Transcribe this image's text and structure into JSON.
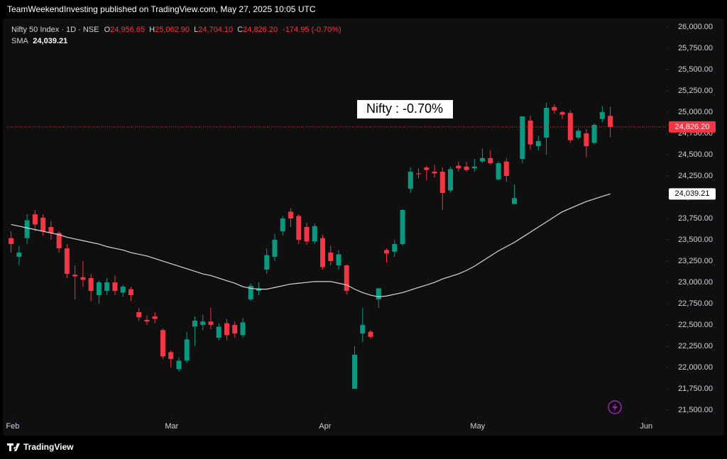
{
  "header": "TeamWeekendInvesting published on TradingView.com, May 27, 2025 10:05 UTC",
  "footer": "TradingView",
  "chart_data": {
    "type": "candlestick",
    "legend": {
      "symbol": "Nifty 50 Index · 1D · NSE",
      "o_key": "O",
      "open": "24,956.65",
      "h_key": "H",
      "high": "25,062.90",
      "l_key": "L",
      "low": "24,704.10",
      "c_key": "C",
      "close": "24,826.20",
      "change": "-174.95 (-0.70%)",
      "sma_key": "SMA",
      "sma": "24,039.21"
    },
    "annotation": "Nifty : -0.70%",
    "up_color": "#089981",
    "down_color": "#f23645",
    "sma_color": "#d9d9d9",
    "x": [
      0,
      1,
      2,
      3,
      4,
      5,
      6,
      7,
      8,
      9,
      10,
      11,
      12,
      13,
      14,
      15,
      16,
      17,
      18,
      19,
      20,
      21,
      22,
      23,
      24,
      25,
      26,
      27,
      28,
      29,
      30,
      31,
      32,
      33,
      34,
      35,
      36,
      37,
      38,
      39,
      40,
      41,
      42,
      43,
      44,
      45,
      46,
      47,
      48,
      49,
      50,
      51,
      52,
      53,
      54,
      55,
      56,
      57,
      58,
      59,
      60,
      61,
      62,
      63,
      64,
      65,
      66,
      67,
      68,
      69,
      70,
      71,
      72,
      73,
      74,
      75
    ],
    "open": [
      23520,
      23300,
      23520,
      23800,
      23760,
      23650,
      23580,
      23400,
      23090,
      23060,
      23050,
      22850,
      22900,
      23000,
      22880,
      22920,
      22650,
      22560,
      22600,
      22440,
      22180,
      21980,
      22080,
      22480,
      22500,
      22540,
      22350,
      22520,
      22500,
      22380,
      22800,
      22900,
      23150,
      23300,
      23600,
      23830,
      23780,
      23650,
      23480,
      23520,
      23350,
      23200,
      23200,
      21750,
      22400,
      22420,
      22800,
      23380,
      23360,
      23450,
      24100,
      24280,
      24350,
      24300,
      24300,
      24080,
      24370,
      24360,
      24340,
      24420,
      24460,
      24210,
      24420,
      23920,
      24450,
      24900,
      24600,
      24700,
      25060,
      25000,
      24990,
      24700,
      24750,
      24640,
      24920,
      24956.65
    ],
    "high": [
      23600,
      23430,
      23800,
      23850,
      23800,
      23720,
      23600,
      23450,
      23200,
      23250,
      23100,
      23020,
      23050,
      23080,
      22970,
      22950,
      22700,
      22610,
      22650,
      22460,
      22200,
      22120,
      22420,
      22600,
      22620,
      22700,
      22520,
      22570,
      22540,
      22580,
      22990,
      23000,
      23400,
      23570,
      23780,
      23870,
      23800,
      23700,
      23690,
      23560,
      23430,
      23380,
      23210,
      22250,
      22700,
      22440,
      22930,
      23400,
      23500,
      23860,
      24350,
      24340,
      24370,
      24380,
      24350,
      24360,
      24420,
      24420,
      24450,
      24570,
      24550,
      24420,
      24460,
      24150,
      24950,
      24960,
      24720,
      25110,
      25090,
      25010,
      25020,
      24810,
      24800,
      24870,
      25070,
      25062.9
    ],
    "low": [
      23350,
      23200,
      23450,
      23600,
      23550,
      23500,
      23350,
      23050,
      22800,
      22950,
      22780,
      22750,
      22850,
      22850,
      22830,
      22780,
      22550,
      22500,
      22520,
      22100,
      22000,
      21950,
      22050,
      22250,
      22440,
      22450,
      22320,
      22320,
      22350,
      22350,
      22780,
      22850,
      23100,
      23250,
      23550,
      23650,
      23450,
      23440,
      23450,
      23150,
      23200,
      23150,
      22860,
      21750,
      22300,
      22340,
      22700,
      23230,
      23300,
      23430,
      24050,
      24220,
      24200,
      24230,
      23850,
      24060,
      24300,
      24300,
      24300,
      24400,
      24380,
      24200,
      24180,
      23920,
      24400,
      24560,
      24550,
      24500,
      24980,
      24920,
      24640,
      24680,
      24470,
      24620,
      24880,
      24704.1
    ],
    "close": [
      23450,
      23350,
      23730,
      23680,
      23600,
      23580,
      23400,
      23100,
      23070,
      23030,
      22900,
      23000,
      23000,
      22900,
      22950,
      22850,
      22590,
      22540,
      22570,
      22130,
      22100,
      22080,
      22330,
      22550,
      22540,
      22500,
      22480,
      22380,
      22400,
      22530,
      22960,
      22930,
      23320,
      23500,
      23750,
      23750,
      23500,
      23480,
      23660,
      23180,
      23250,
      23330,
      22900,
      22150,
      22500,
      22360,
      22930,
      23340,
      23450,
      23850,
      24300,
      24270,
      24320,
      24280,
      24050,
      24330,
      24340,
      24320,
      24360,
      24460,
      24400,
      24400,
      24250,
      23990,
      24950,
      24620,
      24660,
      25050,
      25020,
      24970,
      24670,
      24780,
      24600,
      24850,
      25000,
      24826.2
    ],
    "sma": [
      23680,
      23660,
      23640,
      23620,
      23600,
      23580,
      23560,
      23530,
      23510,
      23490,
      23470,
      23450,
      23420,
      23400,
      23380,
      23350,
      23330,
      23310,
      23280,
      23250,
      23220,
      23190,
      23160,
      23130,
      23100,
      23080,
      23050,
      23020,
      22990,
      22950,
      22930,
      22920,
      22920,
      22940,
      22960,
      22980,
      22990,
      23000,
      23010,
      23010,
      23010,
      22990,
      22970,
      22920,
      22880,
      22850,
      22830,
      22840,
      22860,
      22880,
      22910,
      22940,
      22970,
      23000,
      23040,
      23070,
      23100,
      23140,
      23190,
      23250,
      23310,
      23370,
      23420,
      23470,
      23530,
      23590,
      23650,
      23710,
      23770,
      23830,
      23870,
      23910,
      23950,
      23980,
      24010,
      24039.21
    ],
    "last_price": {
      "value": 24826.2,
      "label": "24,826.20"
    },
    "sma_last": {
      "value": 24039.21,
      "label": "24,039.21"
    },
    "xlim": [
      -0.5,
      81.7
    ],
    "xticks": [
      {
        "value": 0.2,
        "label": "Feb"
      },
      {
        "value": 20.1,
        "label": "Mar"
      },
      {
        "value": 39.3,
        "label": "Apr"
      },
      {
        "value": 58.4,
        "label": "May"
      },
      {
        "value": 79.5,
        "label": "Jun"
      }
    ],
    "ylim": [
      21417,
      26092
    ],
    "yticks": [
      {
        "value": 21500,
        "label": "21,500.00"
      },
      {
        "value": 21750,
        "label": "21,750.00"
      },
      {
        "value": 22000,
        "label": "22,000.00"
      },
      {
        "value": 22250,
        "label": "22,250.00"
      },
      {
        "value": 22500,
        "label": "22,500.00"
      },
      {
        "value": 22750,
        "label": "22,750.00"
      },
      {
        "value": 23000,
        "label": "23,000.00"
      },
      {
        "value": 23250,
        "label": "23,250.00"
      },
      {
        "value": 23500,
        "label": "23,500.00"
      },
      {
        "value": 23750,
        "label": "23,750.00"
      },
      {
        "value": 24000,
        "label": "24,000.00"
      },
      {
        "value": 24250,
        "label": "24,250.00"
      },
      {
        "value": 24500,
        "label": "24,500.00"
      },
      {
        "value": 24750,
        "label": "24,750.00"
      },
      {
        "value": 25000,
        "label": "25,000.00"
      },
      {
        "value": 25250,
        "label": "25,250.00"
      },
      {
        "value": 25500,
        "label": "25,500.00"
      },
      {
        "value": 25750,
        "label": "25,750.00"
      },
      {
        "value": 26000,
        "label": "26,000.00"
      }
    ]
  }
}
